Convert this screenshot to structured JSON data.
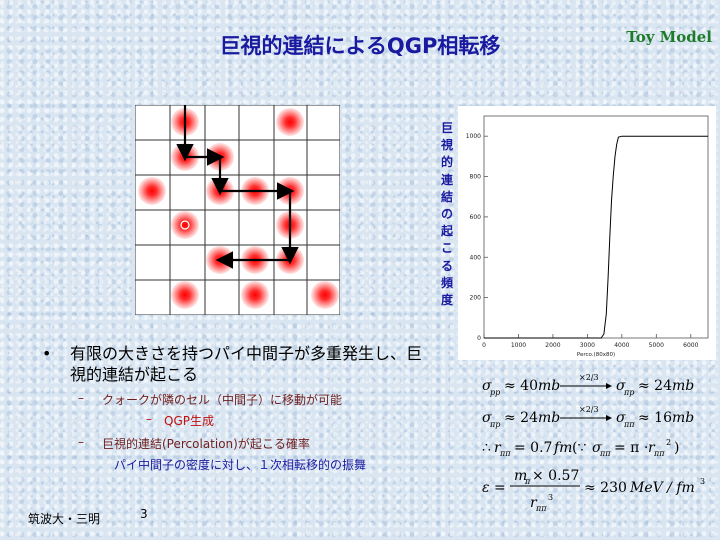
{
  "slide": {
    "title": "巨視的連結によるQGP相転移",
    "badge": "Toy Model",
    "vertical_label": [
      "巨",
      "視",
      "的",
      "連",
      "結",
      "の",
      "起",
      "こ",
      "る",
      "頻",
      "度"
    ],
    "footer": "筑波大・三明",
    "page_number": "3"
  },
  "bullets": {
    "main": {
      "marker": "•",
      "text": "有限の大きさを持つパイ中間子が多重発生し、巨視的連結が起こる"
    },
    "sub1": {
      "marker": "–",
      "text": "クォークが隣のセル（中間子）に移動が可能"
    },
    "sub1a": {
      "marker": "–",
      "text": "QGP生成"
    },
    "sub2": {
      "marker": "–",
      "text": "巨視的連結(Percolation)が起こる確率"
    },
    "sub2_detail": "パイ中間子の密度に対し、１次相転移的の振舞"
  },
  "formulas": {
    "f1_above": "×2/3",
    "f2_above": "×2/3"
  },
  "chart_data": {
    "type": "line",
    "title": "",
    "xlabel": "Perco.(80x80)",
    "ylabel": "",
    "xlim": [
      0,
      6500
    ],
    "ylim": [
      0,
      1100
    ],
    "xticks": [
      0,
      1000,
      2000,
      3000,
      4000,
      5000,
      6000
    ],
    "yticks": [
      0,
      200,
      400,
      600,
      800,
      1000
    ],
    "grid": false,
    "x": [
      0,
      3300,
      3400,
      3480,
      3550,
      3600,
      3650,
      3700,
      3750,
      3800,
      3850,
      3900,
      4000,
      6500
    ],
    "values": [
      0,
      0,
      0,
      20,
      120,
      300,
      500,
      680,
      800,
      900,
      960,
      995,
      1000,
      1000
    ]
  }
}
